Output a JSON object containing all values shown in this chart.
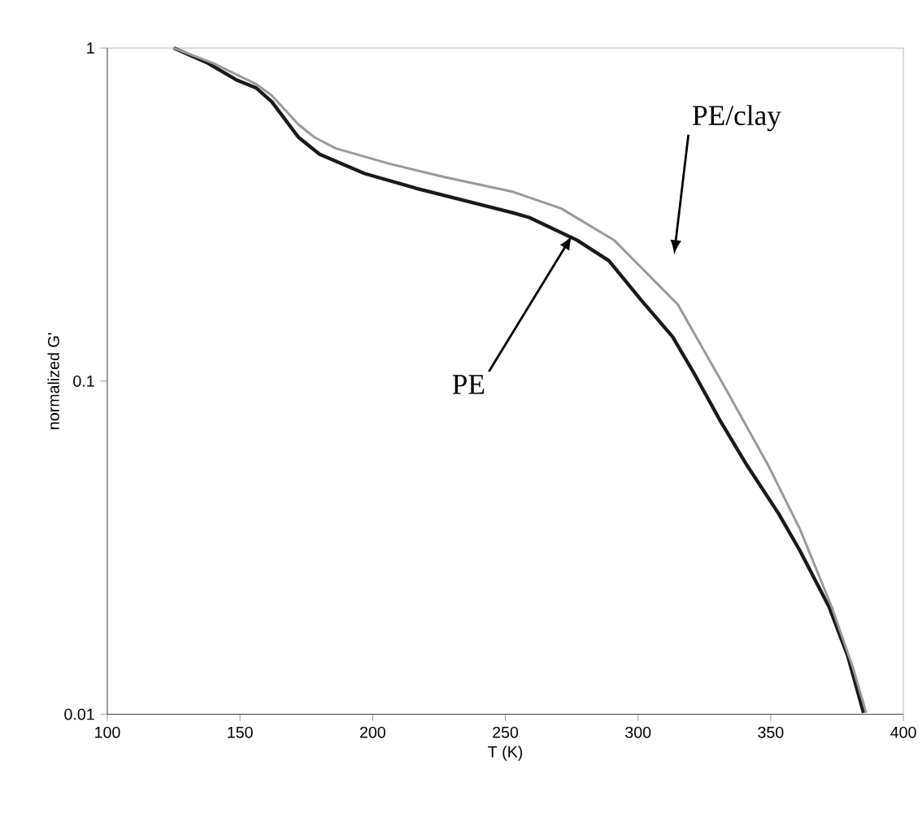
{
  "chart_data": {
    "type": "line",
    "xlabel": "T (K)",
    "ylabel": "normalized G'",
    "log": "y",
    "xlim": [
      100,
      400
    ],
    "xticks": [
      100,
      150,
      200,
      250,
      300,
      350,
      400
    ],
    "ylim": [
      0.01,
      1
    ],
    "yticks": [
      0.01,
      0.1,
      1
    ],
    "series": [
      {
        "color": "#1a1a1a",
        "x": [
          125,
          138,
          149,
          156,
          162,
          172,
          180,
          197,
          216,
          253,
          259,
          277,
          289,
          301,
          313,
          321,
          331,
          341,
          353,
          361,
          372,
          379,
          385
        ],
        "values": [
          1.0,
          0.9,
          0.8,
          0.76,
          0.69,
          0.54,
          0.48,
          0.42,
          0.38,
          0.32,
          0.31,
          0.265,
          0.23,
          0.176,
          0.136,
          0.106,
          0.076,
          0.056,
          0.04,
          0.031,
          0.021,
          0.015,
          0.0101
        ]
      },
      {
        "color": "#999999",
        "x": [
          125,
          140,
          156,
          162,
          172,
          178,
          186,
          206,
          227,
          253,
          271,
          291,
          315,
          333,
          349,
          361,
          373,
          381,
          386
        ],
        "values": [
          1.0,
          0.9,
          0.78,
          0.72,
          0.59,
          0.54,
          0.5,
          0.45,
          0.41,
          0.37,
          0.33,
          0.265,
          0.17,
          0.095,
          0.056,
          0.036,
          0.021,
          0.0138,
          0.0101
        ]
      }
    ],
    "annotations": [
      {
        "text": "PE",
        "x": 277,
        "y": 0.265
      },
      "PE/clay"
    ]
  }
}
